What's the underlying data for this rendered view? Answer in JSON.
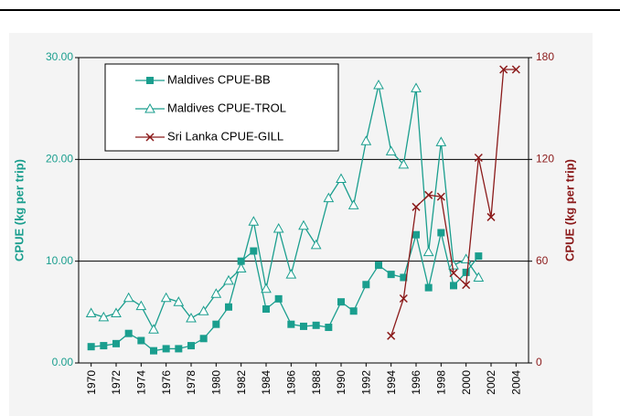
{
  "chart_data": {
    "type": "line",
    "x": [
      1970,
      1971,
      1972,
      1973,
      1974,
      1975,
      1976,
      1977,
      1978,
      1979,
      1980,
      1981,
      1982,
      1983,
      1984,
      1985,
      1986,
      1987,
      1988,
      1989,
      1990,
      1991,
      1992,
      1993,
      1994,
      1995,
      1996,
      1997,
      1998,
      1999,
      2000,
      2001,
      2002,
      2003,
      2004
    ],
    "series": [
      {
        "name": "Maldives CPUE-BB",
        "color": "#1a9e8e",
        "marker": "square",
        "values": [
          1.6,
          1.7,
          1.9,
          2.9,
          2.2,
          1.2,
          1.4,
          1.4,
          1.7,
          2.4,
          3.8,
          5.5,
          10.0,
          11.0,
          5.3,
          6.3,
          3.8,
          3.6,
          3.7,
          3.5,
          6.0,
          5.1,
          7.7,
          9.6,
          8.7,
          8.4,
          12.6,
          7.4,
          12.8,
          7.6,
          8.9,
          10.5,
          null,
          null,
          null
        ]
      },
      {
        "name": "Maldives CPUE-TROL",
        "color": "#1a9e8e",
        "marker": "triangle",
        "values": [
          4.9,
          4.5,
          4.9,
          6.4,
          5.6,
          3.3,
          6.4,
          6.0,
          4.4,
          5.1,
          6.8,
          8.1,
          9.3,
          13.9,
          7.3,
          13.2,
          8.7,
          13.5,
          11.6,
          16.2,
          18.1,
          15.5,
          21.8,
          27.3,
          20.8,
          19.5,
          27.0,
          10.9,
          21.7,
          9.6,
          10.2,
          8.4,
          null,
          null,
          null
        ]
      },
      {
        "name": "Sri Lanka CPUE-GILL",
        "color": "#8b1a1a",
        "marker": "x",
        "axis": "y2",
        "values": [
          null,
          null,
          null,
          null,
          null,
          null,
          null,
          null,
          null,
          null,
          null,
          null,
          null,
          null,
          null,
          null,
          null,
          null,
          null,
          null,
          null,
          null,
          null,
          null,
          16,
          38,
          92,
          99,
          98,
          53,
          46,
          121,
          86,
          173,
          173
        ]
      }
    ],
    "xlim": [
      1969,
      2005
    ],
    "xticks": [
      1970,
      1972,
      1974,
      1976,
      1978,
      1980,
      1982,
      1984,
      1986,
      1988,
      1990,
      1992,
      1994,
      1996,
      1998,
      2000,
      2002,
      2004
    ],
    "ylim": [
      0,
      30
    ],
    "yticks": [
      {
        "value": 0,
        "label": "0.00"
      },
      {
        "value": 10,
        "label": "10.00"
      },
      {
        "value": 20,
        "label": "20.00"
      },
      {
        "value": 30,
        "label": "30.00"
      }
    ],
    "y2lim": [
      0,
      180
    ],
    "y2ticks": [
      0,
      60,
      120,
      180
    ],
    "ylabel": "CPUE (kg per trip)",
    "y2label": "CPUE (kg per trip)",
    "grid": true,
    "legend": "upper-left"
  }
}
